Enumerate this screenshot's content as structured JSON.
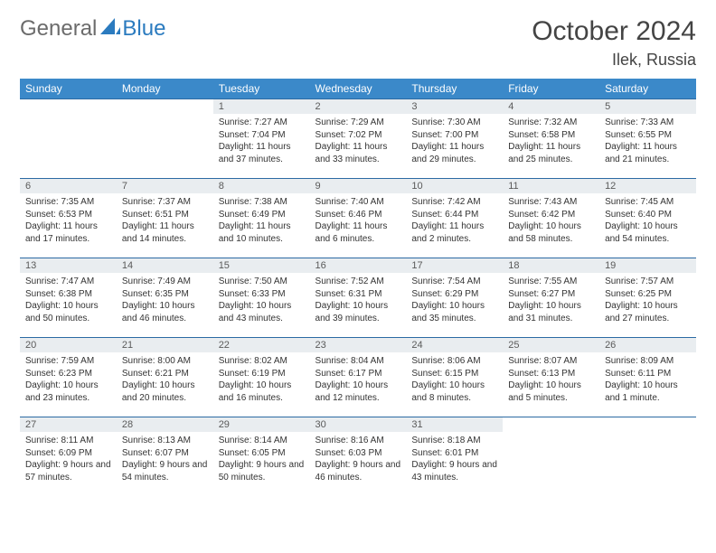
{
  "logo": {
    "text1": "General",
    "text2": "Blue"
  },
  "colors": {
    "header_bg": "#3b89c9",
    "header_text": "#ffffff",
    "row_border": "#2b6aa3",
    "daynum_bg": "#e9edf0",
    "logo_gray": "#6b6b6b",
    "logo_blue": "#2b7bbf"
  },
  "title": "October 2024",
  "location": "Ilek, Russia",
  "weekdays": [
    "Sunday",
    "Monday",
    "Tuesday",
    "Wednesday",
    "Thursday",
    "Friday",
    "Saturday"
  ],
  "weeks": [
    [
      null,
      null,
      {
        "n": "1",
        "sunrise": "Sunrise: 7:27 AM",
        "sunset": "Sunset: 7:04 PM",
        "day": "Daylight: 11 hours and 37 minutes."
      },
      {
        "n": "2",
        "sunrise": "Sunrise: 7:29 AM",
        "sunset": "Sunset: 7:02 PM",
        "day": "Daylight: 11 hours and 33 minutes."
      },
      {
        "n": "3",
        "sunrise": "Sunrise: 7:30 AM",
        "sunset": "Sunset: 7:00 PM",
        "day": "Daylight: 11 hours and 29 minutes."
      },
      {
        "n": "4",
        "sunrise": "Sunrise: 7:32 AM",
        "sunset": "Sunset: 6:58 PM",
        "day": "Daylight: 11 hours and 25 minutes."
      },
      {
        "n": "5",
        "sunrise": "Sunrise: 7:33 AM",
        "sunset": "Sunset: 6:55 PM",
        "day": "Daylight: 11 hours and 21 minutes."
      }
    ],
    [
      {
        "n": "6",
        "sunrise": "Sunrise: 7:35 AM",
        "sunset": "Sunset: 6:53 PM",
        "day": "Daylight: 11 hours and 17 minutes."
      },
      {
        "n": "7",
        "sunrise": "Sunrise: 7:37 AM",
        "sunset": "Sunset: 6:51 PM",
        "day": "Daylight: 11 hours and 14 minutes."
      },
      {
        "n": "8",
        "sunrise": "Sunrise: 7:38 AM",
        "sunset": "Sunset: 6:49 PM",
        "day": "Daylight: 11 hours and 10 minutes."
      },
      {
        "n": "9",
        "sunrise": "Sunrise: 7:40 AM",
        "sunset": "Sunset: 6:46 PM",
        "day": "Daylight: 11 hours and 6 minutes."
      },
      {
        "n": "10",
        "sunrise": "Sunrise: 7:42 AM",
        "sunset": "Sunset: 6:44 PM",
        "day": "Daylight: 11 hours and 2 minutes."
      },
      {
        "n": "11",
        "sunrise": "Sunrise: 7:43 AM",
        "sunset": "Sunset: 6:42 PM",
        "day": "Daylight: 10 hours and 58 minutes."
      },
      {
        "n": "12",
        "sunrise": "Sunrise: 7:45 AM",
        "sunset": "Sunset: 6:40 PM",
        "day": "Daylight: 10 hours and 54 minutes."
      }
    ],
    [
      {
        "n": "13",
        "sunrise": "Sunrise: 7:47 AM",
        "sunset": "Sunset: 6:38 PM",
        "day": "Daylight: 10 hours and 50 minutes."
      },
      {
        "n": "14",
        "sunrise": "Sunrise: 7:49 AM",
        "sunset": "Sunset: 6:35 PM",
        "day": "Daylight: 10 hours and 46 minutes."
      },
      {
        "n": "15",
        "sunrise": "Sunrise: 7:50 AM",
        "sunset": "Sunset: 6:33 PM",
        "day": "Daylight: 10 hours and 43 minutes."
      },
      {
        "n": "16",
        "sunrise": "Sunrise: 7:52 AM",
        "sunset": "Sunset: 6:31 PM",
        "day": "Daylight: 10 hours and 39 minutes."
      },
      {
        "n": "17",
        "sunrise": "Sunrise: 7:54 AM",
        "sunset": "Sunset: 6:29 PM",
        "day": "Daylight: 10 hours and 35 minutes."
      },
      {
        "n": "18",
        "sunrise": "Sunrise: 7:55 AM",
        "sunset": "Sunset: 6:27 PM",
        "day": "Daylight: 10 hours and 31 minutes."
      },
      {
        "n": "19",
        "sunrise": "Sunrise: 7:57 AM",
        "sunset": "Sunset: 6:25 PM",
        "day": "Daylight: 10 hours and 27 minutes."
      }
    ],
    [
      {
        "n": "20",
        "sunrise": "Sunrise: 7:59 AM",
        "sunset": "Sunset: 6:23 PM",
        "day": "Daylight: 10 hours and 23 minutes."
      },
      {
        "n": "21",
        "sunrise": "Sunrise: 8:00 AM",
        "sunset": "Sunset: 6:21 PM",
        "day": "Daylight: 10 hours and 20 minutes."
      },
      {
        "n": "22",
        "sunrise": "Sunrise: 8:02 AM",
        "sunset": "Sunset: 6:19 PM",
        "day": "Daylight: 10 hours and 16 minutes."
      },
      {
        "n": "23",
        "sunrise": "Sunrise: 8:04 AM",
        "sunset": "Sunset: 6:17 PM",
        "day": "Daylight: 10 hours and 12 minutes."
      },
      {
        "n": "24",
        "sunrise": "Sunrise: 8:06 AM",
        "sunset": "Sunset: 6:15 PM",
        "day": "Daylight: 10 hours and 8 minutes."
      },
      {
        "n": "25",
        "sunrise": "Sunrise: 8:07 AM",
        "sunset": "Sunset: 6:13 PM",
        "day": "Daylight: 10 hours and 5 minutes."
      },
      {
        "n": "26",
        "sunrise": "Sunrise: 8:09 AM",
        "sunset": "Sunset: 6:11 PM",
        "day": "Daylight: 10 hours and 1 minute."
      }
    ],
    [
      {
        "n": "27",
        "sunrise": "Sunrise: 8:11 AM",
        "sunset": "Sunset: 6:09 PM",
        "day": "Daylight: 9 hours and 57 minutes."
      },
      {
        "n": "28",
        "sunrise": "Sunrise: 8:13 AM",
        "sunset": "Sunset: 6:07 PM",
        "day": "Daylight: 9 hours and 54 minutes."
      },
      {
        "n": "29",
        "sunrise": "Sunrise: 8:14 AM",
        "sunset": "Sunset: 6:05 PM",
        "day": "Daylight: 9 hours and 50 minutes."
      },
      {
        "n": "30",
        "sunrise": "Sunrise: 8:16 AM",
        "sunset": "Sunset: 6:03 PM",
        "day": "Daylight: 9 hours and 46 minutes."
      },
      {
        "n": "31",
        "sunrise": "Sunrise: 8:18 AM",
        "sunset": "Sunset: 6:01 PM",
        "day": "Daylight: 9 hours and 43 minutes."
      },
      null,
      null
    ]
  ]
}
